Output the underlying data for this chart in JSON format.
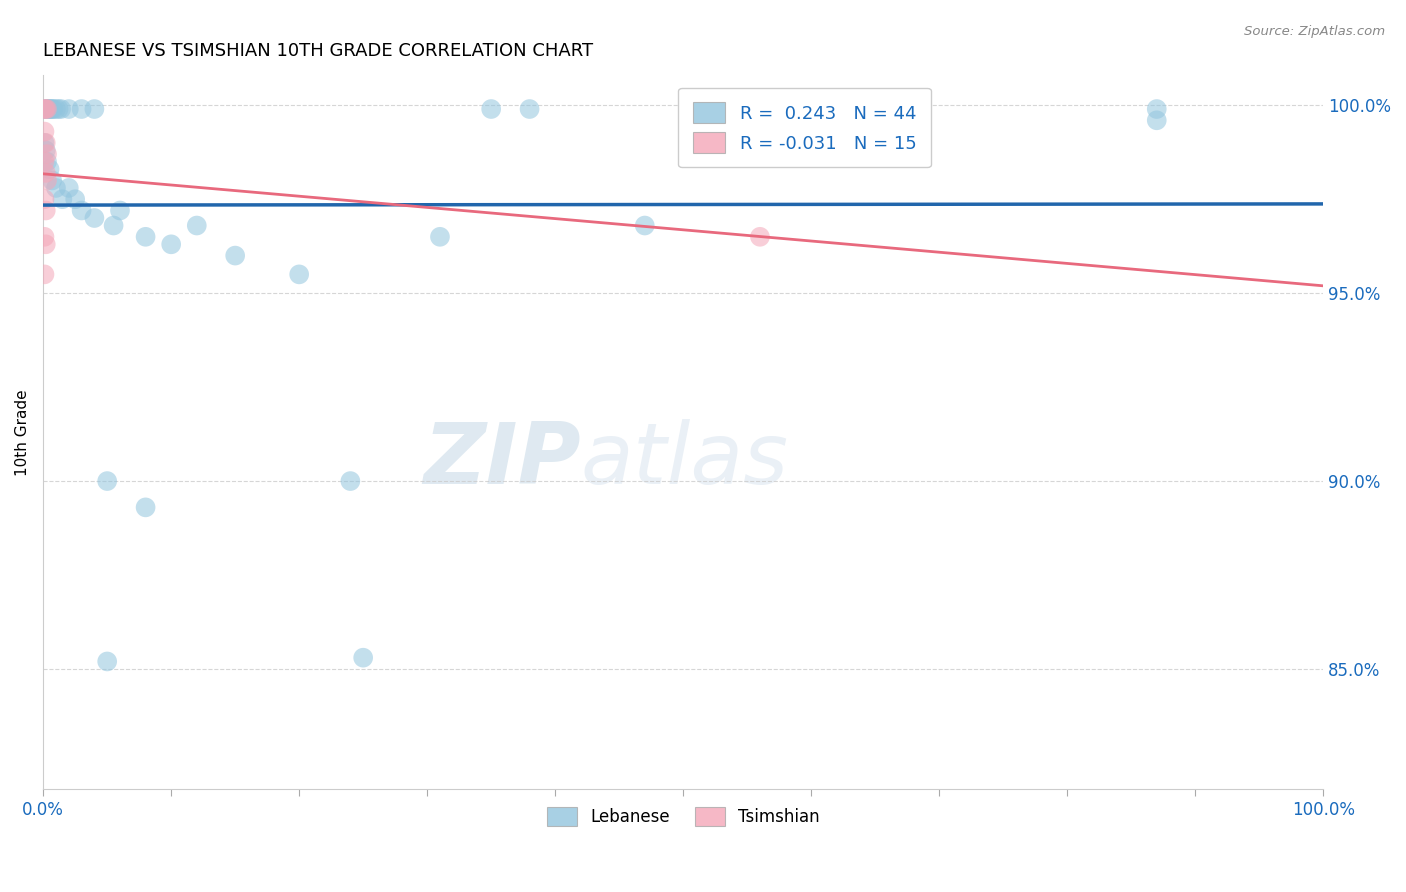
{
  "title": "LEBANESE VS TSIMSHIAN 10TH GRADE CORRELATION CHART",
  "source": "Source: ZipAtlas.com",
  "ylabel": "10th Grade",
  "ylabel_ticks": [
    85.0,
    90.0,
    95.0,
    100.0
  ],
  "ylabel_tick_labels": [
    "85.0%",
    "90.0%",
    "95.0%",
    "100.0%"
  ],
  "xmin": 0.0,
  "xmax": 1.0,
  "ymin": 0.818,
  "ymax": 1.008,
  "blue_color": "#92c5de",
  "pink_color": "#f4a6b8",
  "blue_line_color": "#2166ac",
  "pink_line_color": "#e8697d",
  "blue_scatter": [
    [
      0.001,
      0.999
    ],
    [
      0.002,
      0.999
    ],
    [
      0.003,
      0.999
    ],
    [
      0.004,
      0.999
    ],
    [
      0.005,
      0.999
    ],
    [
      0.006,
      0.999
    ],
    [
      0.007,
      0.999
    ],
    [
      0.008,
      0.999
    ],
    [
      0.01,
      0.999
    ],
    [
      0.012,
      0.999
    ],
    [
      0.014,
      0.999
    ],
    [
      0.02,
      0.999
    ],
    [
      0.03,
      0.999
    ],
    [
      0.04,
      0.999
    ],
    [
      0.35,
      0.999
    ],
    [
      0.38,
      0.999
    ],
    [
      0.001,
      0.99
    ],
    [
      0.002,
      0.988
    ],
    [
      0.003,
      0.985
    ],
    [
      0.005,
      0.983
    ],
    [
      0.007,
      0.98
    ],
    [
      0.01,
      0.978
    ],
    [
      0.015,
      0.975
    ],
    [
      0.02,
      0.978
    ],
    [
      0.025,
      0.975
    ],
    [
      0.03,
      0.972
    ],
    [
      0.04,
      0.97
    ],
    [
      0.055,
      0.968
    ],
    [
      0.06,
      0.972
    ],
    [
      0.08,
      0.965
    ],
    [
      0.1,
      0.963
    ],
    [
      0.12,
      0.968
    ],
    [
      0.15,
      0.96
    ],
    [
      0.2,
      0.955
    ],
    [
      0.31,
      0.965
    ],
    [
      0.47,
      0.968
    ],
    [
      0.55,
      0.998
    ],
    [
      0.05,
      0.9
    ],
    [
      0.08,
      0.893
    ],
    [
      0.05,
      0.852
    ],
    [
      0.24,
      0.9
    ],
    [
      0.25,
      0.853
    ],
    [
      0.87,
      0.999
    ],
    [
      0.87,
      0.996
    ]
  ],
  "pink_scatter": [
    [
      0.001,
      0.999
    ],
    [
      0.002,
      0.999
    ],
    [
      0.003,
      0.999
    ],
    [
      0.001,
      0.993
    ],
    [
      0.002,
      0.99
    ],
    [
      0.003,
      0.987
    ],
    [
      0.001,
      0.985
    ],
    [
      0.002,
      0.982
    ],
    [
      0.003,
      0.98
    ],
    [
      0.001,
      0.975
    ],
    [
      0.002,
      0.972
    ],
    [
      0.001,
      0.965
    ],
    [
      0.002,
      0.963
    ],
    [
      0.001,
      0.955
    ],
    [
      0.56,
      0.965
    ]
  ],
  "watermark_zip": "ZIP",
  "watermark_atlas": "atlas",
  "background_color": "#ffffff",
  "grid_color": "#cccccc",
  "legend_items": [
    {
      "label": "R =  0.243   N = 44",
      "color": "#92c5de"
    },
    {
      "label": "R = -0.031   N = 15",
      "color": "#f4a6b8"
    }
  ]
}
